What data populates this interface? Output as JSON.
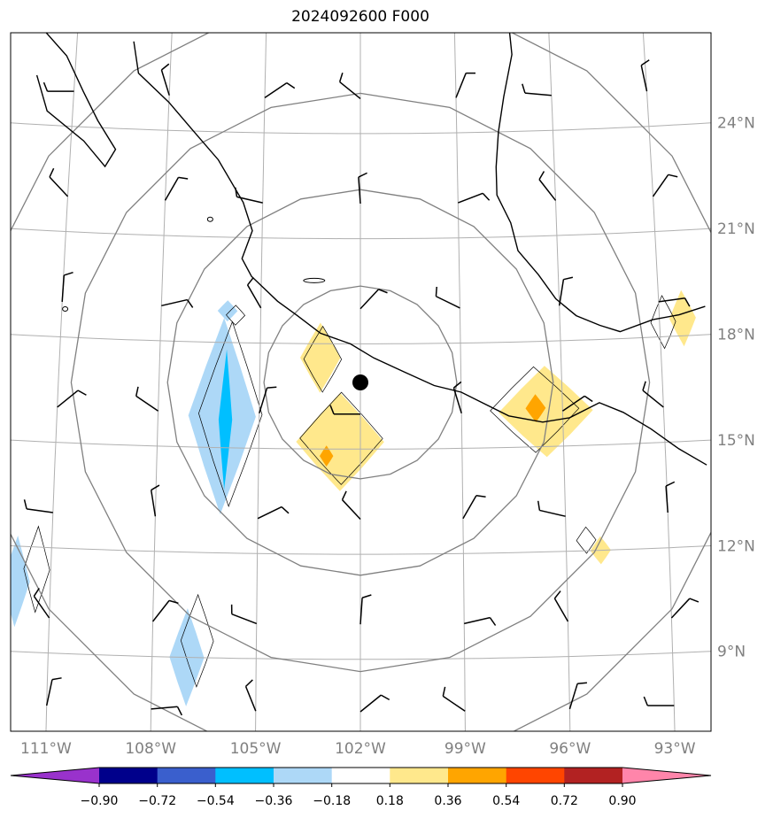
{
  "title": "2024092600 F000",
  "colors": {
    "gridline": "#b0b0b0",
    "range_ring": "#808080",
    "coastline": "#000000",
    "tick_label": "#808080",
    "storm_center": "#000000"
  },
  "map": {
    "projection": "lambert-azimuthal-equal-area",
    "center": {
      "lat": 16.9,
      "lon": -102.0
    },
    "extent": {
      "lon_min": -112.0,
      "lon_max": -92.0,
      "lat_min": 7.0,
      "lat_max": 26.0
    },
    "longitude_ticks": [
      {
        "lon": -111,
        "label": "111°W"
      },
      {
        "lon": -108,
        "label": "108°W"
      },
      {
        "lon": -105,
        "label": "105°W"
      },
      {
        "lon": -102,
        "label": "102°W"
      },
      {
        "lon": -99,
        "label": "99°W"
      },
      {
        "lon": -96,
        "label": "96°W"
      },
      {
        "lon": -93,
        "label": "93°W"
      }
    ],
    "latitude_ticks": [
      {
        "lat": 24,
        "label": "24°N"
      },
      {
        "lat": 21,
        "label": "21°N"
      },
      {
        "lat": 18,
        "label": "18°N"
      },
      {
        "lat": 15,
        "label": "15°N"
      },
      {
        "lat": 12,
        "label": "12°N"
      },
      {
        "lat": 9,
        "label": "9°N"
      }
    ],
    "range_rings_deg": [
      2.75,
      5.5,
      8.25,
      11.0
    ],
    "storm_center": {
      "lat": 16.9,
      "lon": -102.0
    },
    "wind_barb_grid": {
      "lons": [
        -111,
        -108,
        -105,
        -102,
        -99,
        -96,
        -93
      ],
      "lats": [
        25,
        22,
        19,
        16,
        13,
        10,
        7.5
      ]
    },
    "shading_features": [
      {
        "kind": "negative",
        "level": "-0.36 to -0.18",
        "lat": 15.9,
        "lon": -106.1,
        "half_lat": 2.8,
        "half_lon": 1.0
      },
      {
        "kind": "negative",
        "level": "-0.54 to -0.36",
        "lat": 15.8,
        "lon": -106.0,
        "half_lat": 2.0,
        "half_lon": 0.2
      },
      {
        "kind": "negative",
        "level": "-0.36 to -0.18",
        "lat": 18.9,
        "lon": -106.0,
        "half_lat": 0.3,
        "half_lon": 0.3
      },
      {
        "kind": "negative",
        "level": "-0.36 to -0.18",
        "lat": 9.0,
        "lon": -107.0,
        "half_lat": 1.4,
        "half_lon": 0.5
      },
      {
        "kind": "negative",
        "level": "-0.36 to -0.18",
        "lat": 11.0,
        "lon": -112.0,
        "half_lat": 1.3,
        "half_lon": 0.4
      },
      {
        "kind": "positive",
        "level": "0.18 to 0.36",
        "lat": 17.6,
        "lon": -103.2,
        "half_lat": 1.0,
        "half_lon": 0.6
      },
      {
        "kind": "positive",
        "level": "0.18 to 0.36",
        "lat": 15.2,
        "lon": -102.6,
        "half_lat": 1.4,
        "half_lon": 1.3
      },
      {
        "kind": "positive",
        "level": "0.36 to 0.54",
        "lat": 14.8,
        "lon": -103.0,
        "half_lat": 0.3,
        "half_lon": 0.2
      },
      {
        "kind": "positive",
        "level": "0.18 to 0.36",
        "lat": 16.0,
        "lon": -96.5,
        "half_lat": 1.3,
        "half_lon": 1.4
      },
      {
        "kind": "positive",
        "level": "0.36 to 0.54",
        "lat": 16.1,
        "lon": -96.8,
        "half_lat": 0.4,
        "half_lon": 0.3
      },
      {
        "kind": "positive",
        "level": "0.18 to 0.36",
        "lat": 12.0,
        "lon": -95.0,
        "half_lat": 0.4,
        "half_lon": 0.3
      },
      {
        "kind": "positive",
        "level": "0.18 to 0.36",
        "lat": 18.5,
        "lon": -92.3,
        "half_lat": 0.8,
        "half_lon": 0.4
      }
    ]
  },
  "colorbar": {
    "ticks": [
      "−0.90",
      "−0.72",
      "−0.54",
      "−0.36",
      "−0.18",
      "0.18",
      "0.36",
      "0.54",
      "0.72",
      "0.90"
    ],
    "under_color": "#9932cc",
    "over_color": "#ff85aa",
    "segment_colors": [
      "#00008b",
      "#3a5fcd",
      "#00bfff",
      "#add8f7",
      "#ffffff",
      "#ffe88c",
      "#ffa500",
      "#ff4500",
      "#b22222"
    ]
  }
}
